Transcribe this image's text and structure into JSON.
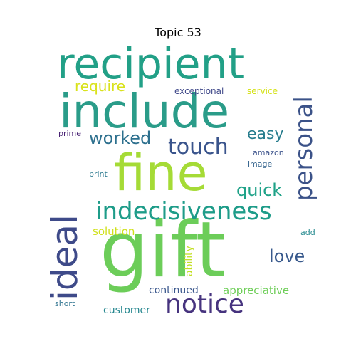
{
  "title": "Topic 53",
  "words": [
    {
      "text": "gift",
      "color": "#6ccd59"
    },
    {
      "text": "include",
      "color": "#2a9c89"
    },
    {
      "text": "recipient",
      "color": "#22a087"
    },
    {
      "text": "fine",
      "color": "#a5db36"
    },
    {
      "text": "ideal",
      "color": "#3e4a89"
    },
    {
      "text": "indecisiveness",
      "color": "#1e9c89"
    },
    {
      "text": "notice",
      "color": "#46337e"
    },
    {
      "text": "personal",
      "color": "#3b5288"
    },
    {
      "text": "touch",
      "color": "#3a548c"
    },
    {
      "text": "worked",
      "color": "#2d708e"
    },
    {
      "text": "quick",
      "color": "#1fa288"
    },
    {
      "text": "love",
      "color": "#38598c"
    },
    {
      "text": "easy",
      "color": "#287d8e"
    },
    {
      "text": "require",
      "color": "#d9e21b"
    },
    {
      "text": "solution",
      "color": "#d0e11c"
    },
    {
      "text": "appreciative",
      "color": "#6ece58"
    },
    {
      "text": "continued",
      "color": "#39568c"
    },
    {
      "text": "customer",
      "color": "#24868e"
    },
    {
      "text": "ability",
      "color": "#c2df23"
    },
    {
      "text": "exceptional",
      "color": "#3f4889"
    },
    {
      "text": "service",
      "color": "#d5e21a"
    },
    {
      "text": "amazon",
      "color": "#3b528b"
    },
    {
      "text": "image",
      "color": "#33638d"
    },
    {
      "text": "print",
      "color": "#2a788e"
    },
    {
      "text": "prime",
      "color": "#482173"
    },
    {
      "text": "add",
      "color": "#23898e"
    },
    {
      "text": "short",
      "color": "#2c728e"
    }
  ]
}
